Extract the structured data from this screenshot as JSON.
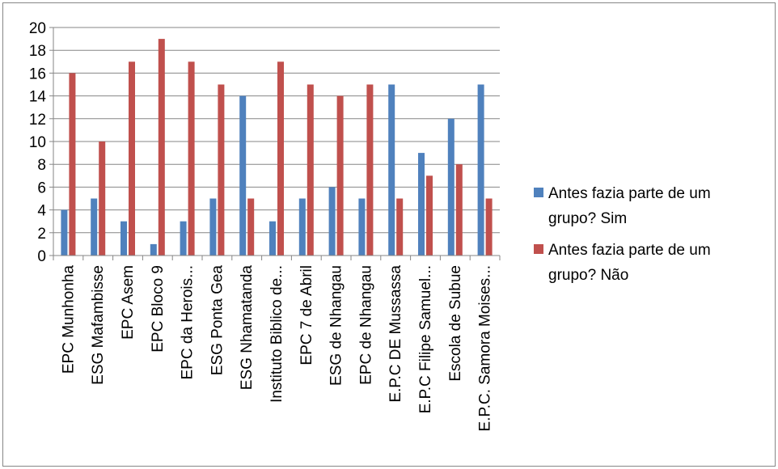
{
  "chart_data": {
    "type": "bar",
    "title": "",
    "xlabel": "",
    "ylabel": "",
    "ylim": [
      0,
      20
    ],
    "ytick_step": 2,
    "grid": true,
    "legend_position": "right",
    "categories": [
      "EPC Munhonha",
      "ESG Mafambisse",
      "EPC Asem",
      "EPC Bloco 9",
      "EPC da Herois...",
      "ESG Ponta Gea",
      "ESG Nhamatanda",
      "Instituto Biblico de...",
      "EPC 7 de Abril",
      "ESG de Nhangau",
      "EPC de Nhangau",
      "E.P.C DE Mussassa",
      "E.P.C Filipe Samuel...",
      "Escola de Subue",
      "E.P.C. Samora Moises..."
    ],
    "series": [
      {
        "name": "Antes fazia parte de um grupo? Sim",
        "color": "#4f81bd",
        "values": [
          4,
          5,
          3,
          1,
          3,
          5,
          14,
          3,
          5,
          6,
          5,
          15,
          9,
          12,
          15
        ]
      },
      {
        "name": "Antes fazia parte de um grupo? Não",
        "color": "#c0504d",
        "values": [
          16,
          10,
          17,
          19,
          17,
          15,
          5,
          17,
          15,
          14,
          15,
          5,
          7,
          8,
          5
        ]
      }
    ],
    "legend": [
      {
        "line1": "Antes fazia parte de um",
        "line2": "grupo? Sim"
      },
      {
        "line1": "Antes fazia parte de um",
        "line2": "grupo? Não"
      }
    ]
  }
}
